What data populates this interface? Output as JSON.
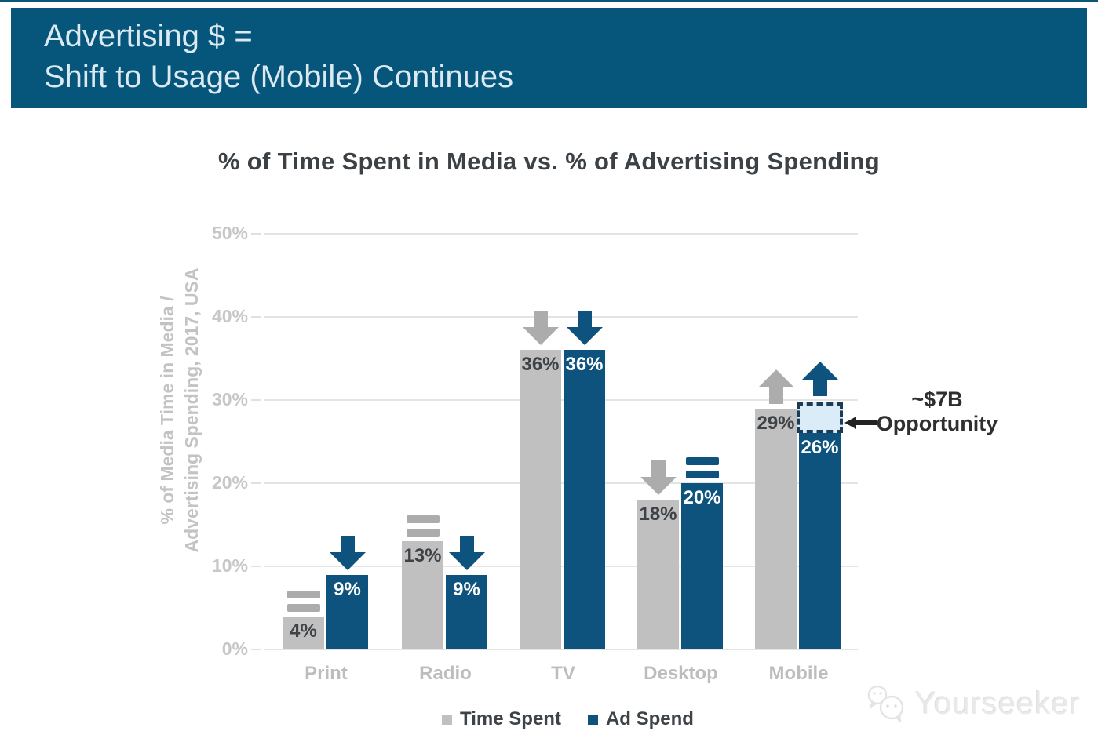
{
  "banner": {
    "line1": "Advertising $ =",
    "line2": "Shift to Usage (Mobile) Continues"
  },
  "colors": {
    "banner_bg": "#05567A",
    "bar_gray": "#C0C0C0",
    "bar_blue": "#0E537E",
    "trend_gray": "#ACACAC",
    "opportunity_fill": "#D9ECF8",
    "opportunity_border": "#1C3C55"
  },
  "chart_data": {
    "type": "bar",
    "title": "% of Time Spent in Media vs. % of Advertising Spending",
    "ylabel": [
      "% of Media Time in Media /",
      "Advertising Spending, 2017, USA"
    ],
    "categories": [
      "Print",
      "Radio",
      "TV",
      "Desktop",
      "Mobile"
    ],
    "series": [
      {
        "name": "Time Spent",
        "color": "#C0C0C0",
        "values": [
          4,
          13,
          36,
          18,
          29
        ],
        "trends": [
          "flat",
          "flat",
          "down",
          "down",
          "up"
        ],
        "trend_color": "#ACACAC",
        "label_color": "#3E4347"
      },
      {
        "name": "Ad Spend",
        "color": "#0E537E",
        "values": [
          9,
          9,
          36,
          20,
          26
        ],
        "trends": [
          "down",
          "down",
          "down",
          "flat",
          "up"
        ],
        "trend_color": "#0E537E",
        "label_color": "#FFFFFF"
      }
    ],
    "ylim": [
      0,
      50
    ],
    "yticks": [
      0,
      10,
      20,
      30,
      40,
      50
    ],
    "ytick_suffix": "%",
    "value_suffix": "%",
    "grid": true,
    "legend_position": "bottom",
    "annotation": {
      "line1": "~$7B",
      "line2": "Opportunity",
      "target_category": "Mobile",
      "target_series": "Ad Spend",
      "box_from_pct": 26,
      "box_to_pct": 29.7
    }
  },
  "watermark": {
    "text": "Yourseeker"
  }
}
